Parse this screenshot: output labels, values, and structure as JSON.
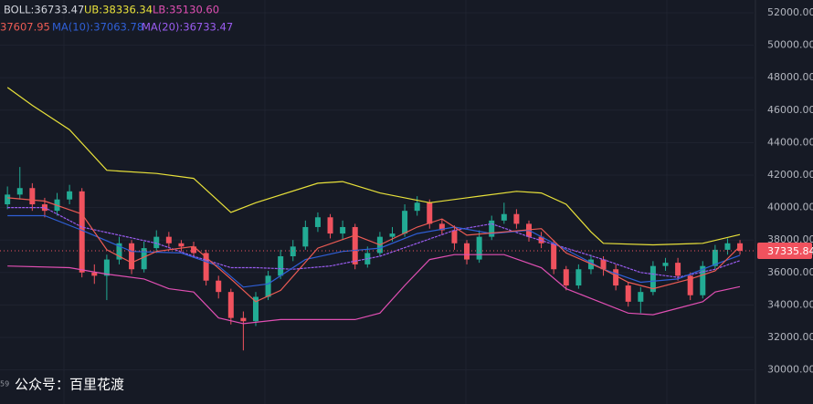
{
  "chart_data": {
    "type": "candlestick",
    "header": {
      "boll": "BOLL:36733.47",
      "ub": "UB:38336.34",
      "lb": "LB:35130.60",
      "ma5": "37607.95",
      "ma10": "MA(10):37063.78",
      "ma20": "MA(20):36733.47"
    },
    "watermark": "公众号：百里花渡",
    "corner_text": "59",
    "up_color": "#22ab94",
    "down_color": "#f0525e",
    "candles": {
      "open": [
        40200,
        40800,
        41200,
        40200,
        39800,
        40500,
        41000,
        36000,
        35800,
        36800,
        37800,
        36200,
        37500,
        38200,
        37800,
        37600,
        37200,
        35500,
        34800,
        33200,
        33000,
        34500,
        35800,
        37000,
        37600,
        38800,
        39400,
        38400,
        38800,
        36500,
        37200,
        38200,
        38400,
        39800,
        40300,
        39000,
        38600,
        37800,
        36800,
        38200,
        39200,
        39600,
        39000,
        38200,
        37800,
        36200,
        35200,
        36200,
        36800,
        36200,
        35200,
        34200,
        34800,
        36400,
        36600,
        35800,
        34600,
        36400,
        37400,
        37800
      ],
      "high": [
        41300,
        42500,
        41500,
        40600,
        40900,
        41400,
        41200,
        36500,
        37100,
        38200,
        38000,
        37900,
        38600,
        38500,
        38000,
        37900,
        37400,
        35800,
        35000,
        33600,
        34800,
        36100,
        37400,
        38000,
        39200,
        39700,
        39600,
        39200,
        39000,
        37600,
        38500,
        38800,
        40200,
        40700,
        40500,
        39300,
        38900,
        38000,
        38600,
        39500,
        40300,
        39900,
        39200,
        38500,
        38000,
        36400,
        36500,
        37100,
        37000,
        36500,
        35400,
        35100,
        36700,
        36900,
        36900,
        36000,
        36700,
        37700,
        38100,
        38000
      ],
      "low": [
        39900,
        40500,
        39800,
        39400,
        39500,
        40200,
        35700,
        35300,
        34300,
        36500,
        35900,
        36000,
        37200,
        37500,
        37300,
        36900,
        35200,
        34400,
        32800,
        31200,
        32700,
        34300,
        35600,
        36700,
        37400,
        38500,
        38100,
        38000,
        36200,
        36300,
        37000,
        37900,
        38200,
        39500,
        38700,
        38300,
        37400,
        36500,
        36600,
        38000,
        39000,
        38700,
        37900,
        37500,
        35900,
        34900,
        35000,
        35900,
        35800,
        34900,
        33900,
        33500,
        34600,
        36100,
        35500,
        34300,
        34400,
        36200,
        37100,
        37100
      ],
      "close": [
        40800,
        41200,
        40200,
        39800,
        40500,
        41000,
        36000,
        35800,
        36800,
        37800,
        36200,
        37500,
        38200,
        37800,
        37600,
        37200,
        35500,
        34800,
        33200,
        33000,
        34500,
        35800,
        37000,
        37600,
        38800,
        39400,
        38400,
        38800,
        36500,
        37200,
        38200,
        38400,
        39800,
        40300,
        39000,
        38600,
        37800,
        36800,
        38200,
        39200,
        39600,
        39000,
        38200,
        37800,
        36200,
        35200,
        36200,
        36800,
        36200,
        35200,
        34200,
        34800,
        36400,
        36600,
        35800,
        34600,
        36400,
        37400,
        37800,
        37335.84
      ]
    },
    "series": [
      {
        "color": "#e8e13a",
        "x": [
          0,
          2,
          5,
          8,
          12,
          15,
          18,
          20,
          25,
          27,
          30,
          34,
          38,
          41,
          43,
          45,
          47,
          48,
          52,
          56,
          59
        ],
        "values": [
          47400,
          46300,
          44800,
          42300,
          42100,
          41800,
          39700,
          40300,
          41500,
          41600,
          40900,
          40300,
          40700,
          41000,
          40900,
          40200,
          38500,
          37800,
          37700,
          37800,
          38340
        ]
      },
      {
        "color": "#e04fb3",
        "x": [
          0,
          5,
          8,
          11,
          13,
          15,
          17,
          19,
          22,
          26,
          28,
          30,
          32,
          34,
          36,
          40,
          43,
          45,
          47,
          50,
          52,
          54,
          56,
          57,
          59
        ],
        "values": [
          36400,
          36300,
          35900,
          35600,
          35000,
          34800,
          33200,
          32850,
          33100,
          33100,
          33100,
          33500,
          35200,
          36800,
          37100,
          37100,
          36300,
          35000,
          34400,
          33500,
          33400,
          33800,
          34200,
          34800,
          35130
        ]
      },
      {
        "color": "#9a5cf0",
        "dashed": true,
        "x": [
          0,
          3,
          6,
          9,
          12,
          15,
          18,
          20,
          23,
          26,
          30,
          33,
          36,
          39,
          42,
          45,
          48,
          51,
          54,
          57,
          59
        ],
        "values": [
          40000,
          40000,
          38800,
          38300,
          37800,
          37000,
          36300,
          36300,
          36200,
          36400,
          37000,
          37800,
          38600,
          39000,
          38200,
          37500,
          36800,
          36000,
          35700,
          36200,
          36733
        ]
      },
      {
        "color": "#2f5fd6",
        "x": [
          0,
          3,
          6,
          10,
          14,
          17,
          19,
          21,
          24,
          27,
          30,
          33,
          36,
          39,
          42,
          45,
          48,
          51,
          54,
          57,
          59
        ],
        "values": [
          39500,
          39500,
          38600,
          37300,
          37200,
          36400,
          35100,
          35300,
          36800,
          37300,
          37500,
          38400,
          38800,
          38400,
          38600,
          37400,
          36200,
          35400,
          35600,
          36500,
          37064
        ]
      },
      {
        "color": "#ec5b54",
        "x": [
          0,
          3,
          6,
          8,
          10,
          12,
          15,
          18,
          20,
          22,
          25,
          28,
          30,
          33,
          35,
          37,
          40,
          43,
          45,
          48,
          50,
          52,
          55,
          57,
          59
        ],
        "values": [
          40600,
          40400,
          39600,
          37400,
          36600,
          37300,
          37600,
          35600,
          34200,
          34900,
          37500,
          38300,
          37700,
          38800,
          39300,
          38300,
          38500,
          38700,
          37200,
          36200,
          35400,
          35000,
          35600,
          36100,
          37608
        ]
      }
    ],
    "last_price": 37335.84,
    "xlim": [
      -0.6,
      60.1
    ],
    "ylim": [
      27899,
      52787
    ],
    "yticks": [
      {
        "value": 30000,
        "label": "30000.00"
      },
      {
        "value": 32000,
        "label": "32000.00"
      },
      {
        "value": 34000,
        "label": "34000.00"
      },
      {
        "value": 36000,
        "label": "36000.00"
      },
      {
        "value": 38000,
        "label": "38000.00"
      },
      {
        "value": 40000,
        "label": "40000.00"
      },
      {
        "value": 42000,
        "label": "42000.00"
      },
      {
        "value": 44000,
        "label": "44000.00"
      },
      {
        "value": 46000,
        "label": "46000.00"
      },
      {
        "value": 48000,
        "label": "48000.00"
      },
      {
        "value": 50000,
        "label": "50000.00"
      },
      {
        "value": 52000,
        "label": "52000.00"
      }
    ],
    "grid": true
  }
}
